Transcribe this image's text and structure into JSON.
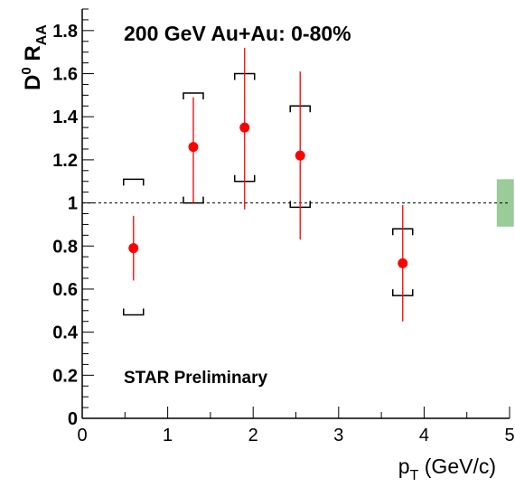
{
  "chart_data": {
    "type": "scatter",
    "title": "200 GeV Au+Au: 0-80%",
    "annotation": "STAR Preliminary",
    "xlabel": {
      "main": "p",
      "sub": "T",
      "rest": " (GeV/c)"
    },
    "ylabel": {
      "main": "D",
      "sup": "0",
      "mid": " R",
      "sub": "AA"
    },
    "xlim": [
      0,
      5
    ],
    "ylim": [
      0,
      1.9
    ],
    "x_ticks": [
      "0",
      "1",
      "2",
      "3",
      "4",
      "5"
    ],
    "y_ticks": [
      "0",
      "0.2",
      "0.4",
      "0.6",
      "0.8",
      "1",
      "1.2",
      "1.4",
      "1.6",
      "1.8"
    ],
    "reference_line": 1.0,
    "grid": false,
    "colors": {
      "points": "#ff0000",
      "stat_err": "#ff0000",
      "sys_err": "#000000",
      "norm_band": "#99cc99"
    },
    "points": [
      {
        "x": 0.6,
        "y": 0.79,
        "stat_low": 0.64,
        "stat_high": 0.94,
        "sys_low": 0.48,
        "sys_high": 1.11
      },
      {
        "x": 1.3,
        "y": 1.26,
        "stat_low": 1.0,
        "stat_high": 1.49,
        "sys_low": 1.0,
        "sys_high": 1.51
      },
      {
        "x": 1.9,
        "y": 1.35,
        "stat_low": 0.97,
        "stat_high": 1.72,
        "sys_low": 1.1,
        "sys_high": 1.6
      },
      {
        "x": 2.55,
        "y": 1.22,
        "stat_low": 0.83,
        "stat_high": 1.61,
        "sys_low": 0.98,
        "sys_high": 1.45
      },
      {
        "x": 3.75,
        "y": 0.72,
        "stat_low": 0.45,
        "stat_high": 0.99,
        "sys_low": 0.57,
        "sys_high": 0.88
      }
    ],
    "norm_uncertainty": {
      "x_from": 4.85,
      "x_to": 5.05,
      "low": 0.89,
      "high": 1.11
    }
  }
}
